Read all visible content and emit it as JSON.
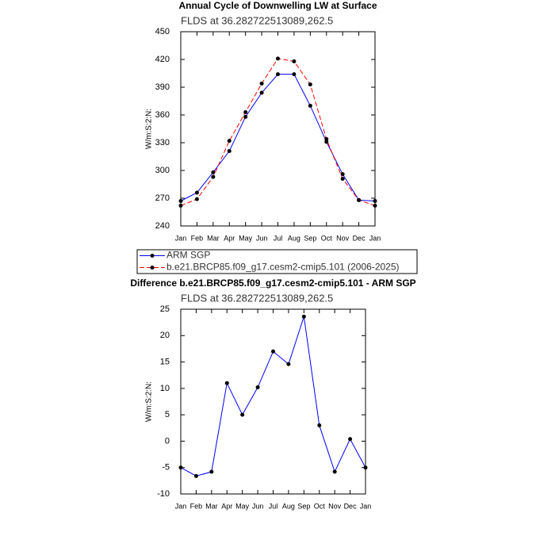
{
  "chart_data": [
    {
      "type": "line",
      "title": "Annual Cycle of Downwelling LW at Surface",
      "subtitle": "FLDS at 36.282722513089,262.5",
      "ylabel": "W/m:S:2:N:",
      "categories": [
        "Jan",
        "Feb",
        "Mar",
        "Apr",
        "May",
        "Jun",
        "Jul",
        "Aug",
        "Sep",
        "Oct",
        "Nov",
        "Dec",
        "Jan"
      ],
      "series": [
        {
          "name": "ARM SGP",
          "color": "#0000ff",
          "linestyle": "solid",
          "marker_color": "#000000",
          "values": [
            267,
            276,
            298,
            321,
            358,
            384,
            404,
            404,
            370,
            331,
            296,
            268,
            267
          ]
        },
        {
          "name": "b.e21.BRCP85.f09_g17.cesm2-cmip5.101 (2006-2025)",
          "color": "#ff0000",
          "linestyle": "dashed",
          "marker_color": "#000000",
          "values": [
            262,
            269,
            293,
            332,
            363,
            394,
            421,
            418,
            393,
            334,
            291,
            268,
            262
          ]
        }
      ],
      "ylim": [
        240,
        450
      ],
      "yticks": [
        240,
        270,
        300,
        330,
        360,
        390,
        420,
        450
      ],
      "legend": "below"
    },
    {
      "type": "line",
      "title": "Difference b.e21.BRCP85.f09_g17.cesm2-cmip5.101 - ARM SGP",
      "subtitle": "FLDS at 36.282722513089,262.5",
      "ylabel": "W/m:S:2:N:",
      "categories": [
        "Jan",
        "Feb",
        "Mar",
        "Apr",
        "May",
        "Jun",
        "Jul",
        "Aug",
        "Sep",
        "Oct",
        "Nov",
        "Dec",
        "Jan"
      ],
      "series": [
        {
          "color": "#0000ff",
          "linestyle": "solid",
          "marker_color": "#000000",
          "values": [
            -5,
            -6.6,
            -5.8,
            11,
            5,
            10.2,
            17,
            14.6,
            23.6,
            3,
            -5.8,
            0.4,
            -5
          ]
        }
      ],
      "ylim": [
        -10,
        25
      ],
      "yticks": [
        -10,
        -5,
        0,
        5,
        10,
        15,
        20,
        25
      ]
    }
  ]
}
